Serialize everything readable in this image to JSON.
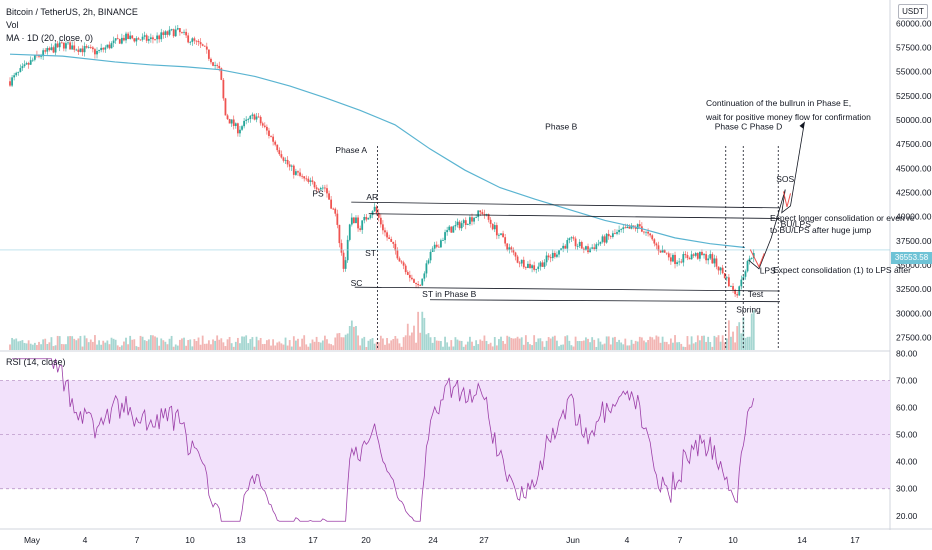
{
  "header": {
    "symbol_line": "Bitcoin / TetherUS, 2h, BINANCE",
    "vol_label": "Vol",
    "ma_label": "MA · 1D (20, close, 0)",
    "rsi_label": "RSI (14, close)"
  },
  "currency_badge": "USDT",
  "current_price": "36553.58",
  "colors": {
    "up": "#26a69a",
    "down": "#ef5350",
    "ma": "#5ab4d1",
    "rsi": "#9c3fa8",
    "rsi_band": "#f2e1fb"
  },
  "chart_data": [
    {
      "type": "candlestick",
      "title": "Bitcoin / TetherUS, 2h, BINANCE",
      "y_ticks": [
        27500,
        30000,
        32500,
        35000,
        37500,
        40000,
        42500,
        45000,
        47500,
        50000,
        52500,
        55000,
        57500,
        60000
      ],
      "y_tick_labels": [
        "27500.00",
        "30000.00",
        "32500.00",
        "35000.00",
        "37500.00",
        "40000.00",
        "42500.00",
        "45000.00",
        "47500.00",
        "50000.00",
        "52500.00",
        "55000.00",
        "57500.00",
        "60000.00"
      ],
      "x_ticks": [
        "May",
        "4",
        "7",
        "10",
        "13",
        "17",
        "20",
        "24",
        "27",
        "Jun",
        "4",
        "7",
        "10",
        "14",
        "17"
      ],
      "ylim": [
        26200,
        62200
      ],
      "price_path": [
        {
          "t": 0,
          "p": 54000
        },
        {
          "t": 1.5,
          "p": 56500
        },
        {
          "t": 3,
          "p": 57800
        },
        {
          "t": 5,
          "p": 57000
        },
        {
          "t": 6.5,
          "p": 58500
        },
        {
          "t": 8,
          "p": 58300
        },
        {
          "t": 9.5,
          "p": 59200
        },
        {
          "t": 11,
          "p": 57500
        },
        {
          "t": 12,
          "p": 55000
        },
        {
          "t": 12.3,
          "p": 50500
        },
        {
          "t": 13,
          "p": 49000
        },
        {
          "t": 14,
          "p": 50500
        },
        {
          "t": 15,
          "p": 48000
        },
        {
          "t": 16,
          "p": 45000
        },
        {
          "t": 17,
          "p": 43500
        },
        {
          "t": 18,
          "p": 43000
        },
        {
          "t": 18.6,
          "p": 40000
        },
        {
          "t": 19.1,
          "p": 34500
        },
        {
          "t": 19.5,
          "p": 40000
        },
        {
          "t": 20,
          "p": 39000
        },
        {
          "t": 20.8,
          "p": 41000
        },
        {
          "t": 21.5,
          "p": 38000
        },
        {
          "t": 22.5,
          "p": 35000
        },
        {
          "t": 23.3,
          "p": 32600
        },
        {
          "t": 24,
          "p": 36000
        },
        {
          "t": 25,
          "p": 38500
        },
        {
          "t": 26,
          "p": 39500
        },
        {
          "t": 27,
          "p": 40500
        },
        {
          "t": 28,
          "p": 38000
        },
        {
          "t": 29,
          "p": 35500
        },
        {
          "t": 30,
          "p": 34700
        },
        {
          "t": 31,
          "p": 36000
        },
        {
          "t": 32,
          "p": 37500
        },
        {
          "t": 33,
          "p": 36500
        },
        {
          "t": 34,
          "p": 37700
        },
        {
          "t": 35,
          "p": 38500
        },
        {
          "t": 36,
          "p": 39000
        },
        {
          "t": 37,
          "p": 36800
        },
        {
          "t": 38,
          "p": 35500
        },
        {
          "t": 39,
          "p": 36000
        },
        {
          "t": 40,
          "p": 35800
        },
        {
          "t": 40.8,
          "p": 34000
        },
        {
          "t": 41.5,
          "p": 32000
        },
        {
          "t": 42,
          "p": 34500
        },
        {
          "t": 42.5,
          "p": 36553
        }
      ],
      "moving_average": [
        {
          "t": 0,
          "p": 56800
        },
        {
          "t": 3,
          "p": 56600
        },
        {
          "t": 6,
          "p": 56000
        },
        {
          "t": 8,
          "p": 55700
        },
        {
          "t": 10,
          "p": 55500
        },
        {
          "t": 12,
          "p": 55200
        },
        {
          "t": 14,
          "p": 54500
        },
        {
          "t": 16,
          "p": 53500
        },
        {
          "t": 18,
          "p": 52300
        },
        {
          "t": 20,
          "p": 51000
        },
        {
          "t": 22,
          "p": 49500
        },
        {
          "t": 24,
          "p": 47000
        },
        {
          "t": 26,
          "p": 44800
        },
        {
          "t": 28,
          "p": 43000
        },
        {
          "t": 30,
          "p": 41800
        },
        {
          "t": 32,
          "p": 40700
        },
        {
          "t": 34,
          "p": 39600
        },
        {
          "t": 36,
          "p": 38800
        },
        {
          "t": 38,
          "p": 37800
        },
        {
          "t": 40,
          "p": 37200
        },
        {
          "t": 42,
          "p": 36800
        }
      ],
      "annotations": [
        {
          "label": "Phase A",
          "price": 46600,
          "t": 19.5
        },
        {
          "label": "Phase B",
          "price": 49000,
          "t": 31.5
        },
        {
          "label": "Phase C",
          "price": 49000,
          "t": 41.2
        },
        {
          "label": "Phase D",
          "price": 49000,
          "t": 43.2
        },
        {
          "label": "PS",
          "price": 42100,
          "t": 17.6
        },
        {
          "label": "AR",
          "price": 41700,
          "t": 20.7
        },
        {
          "label": "ST",
          "price": 35900,
          "t": 20.6
        },
        {
          "label": "SC",
          "price": 32800,
          "t": 19.8
        },
        {
          "label": "ST in Phase B",
          "price": 31700,
          "t": 25.1
        },
        {
          "label": "SOS",
          "price": 43600,
          "t": 44.3
        },
        {
          "label": "BU/LPS",
          "price": 38900,
          "t": 44.9
        },
        {
          "label": "LPS",
          "price": 34100,
          "t": 43.3
        },
        {
          "label": "Test",
          "price": 31700,
          "t": 42.6
        },
        {
          "label": "Spring",
          "price": 30100,
          "t": 42.2
        }
      ],
      "notes": [
        "Continuation of the bullrun in Phase E,",
        "wait for positive money flow for confirmation",
        "Expect longer consolidation or even re",
        "to BU/LPS after huge jump",
        "Expect consolidation (1) to LPS after"
      ]
    },
    {
      "type": "line",
      "title": "RSI (14, close)",
      "y_ticks": [
        20,
        30,
        40,
        50,
        60,
        70,
        80
      ],
      "y_tick_labels": [
        "20.00",
        "30.00",
        "40.00",
        "50.00",
        "60.00",
        "70.00",
        "80.00"
      ],
      "ylim": [
        15.5,
        80.5
      ],
      "band": [
        30,
        70
      ],
      "last_value": 67
    }
  ]
}
